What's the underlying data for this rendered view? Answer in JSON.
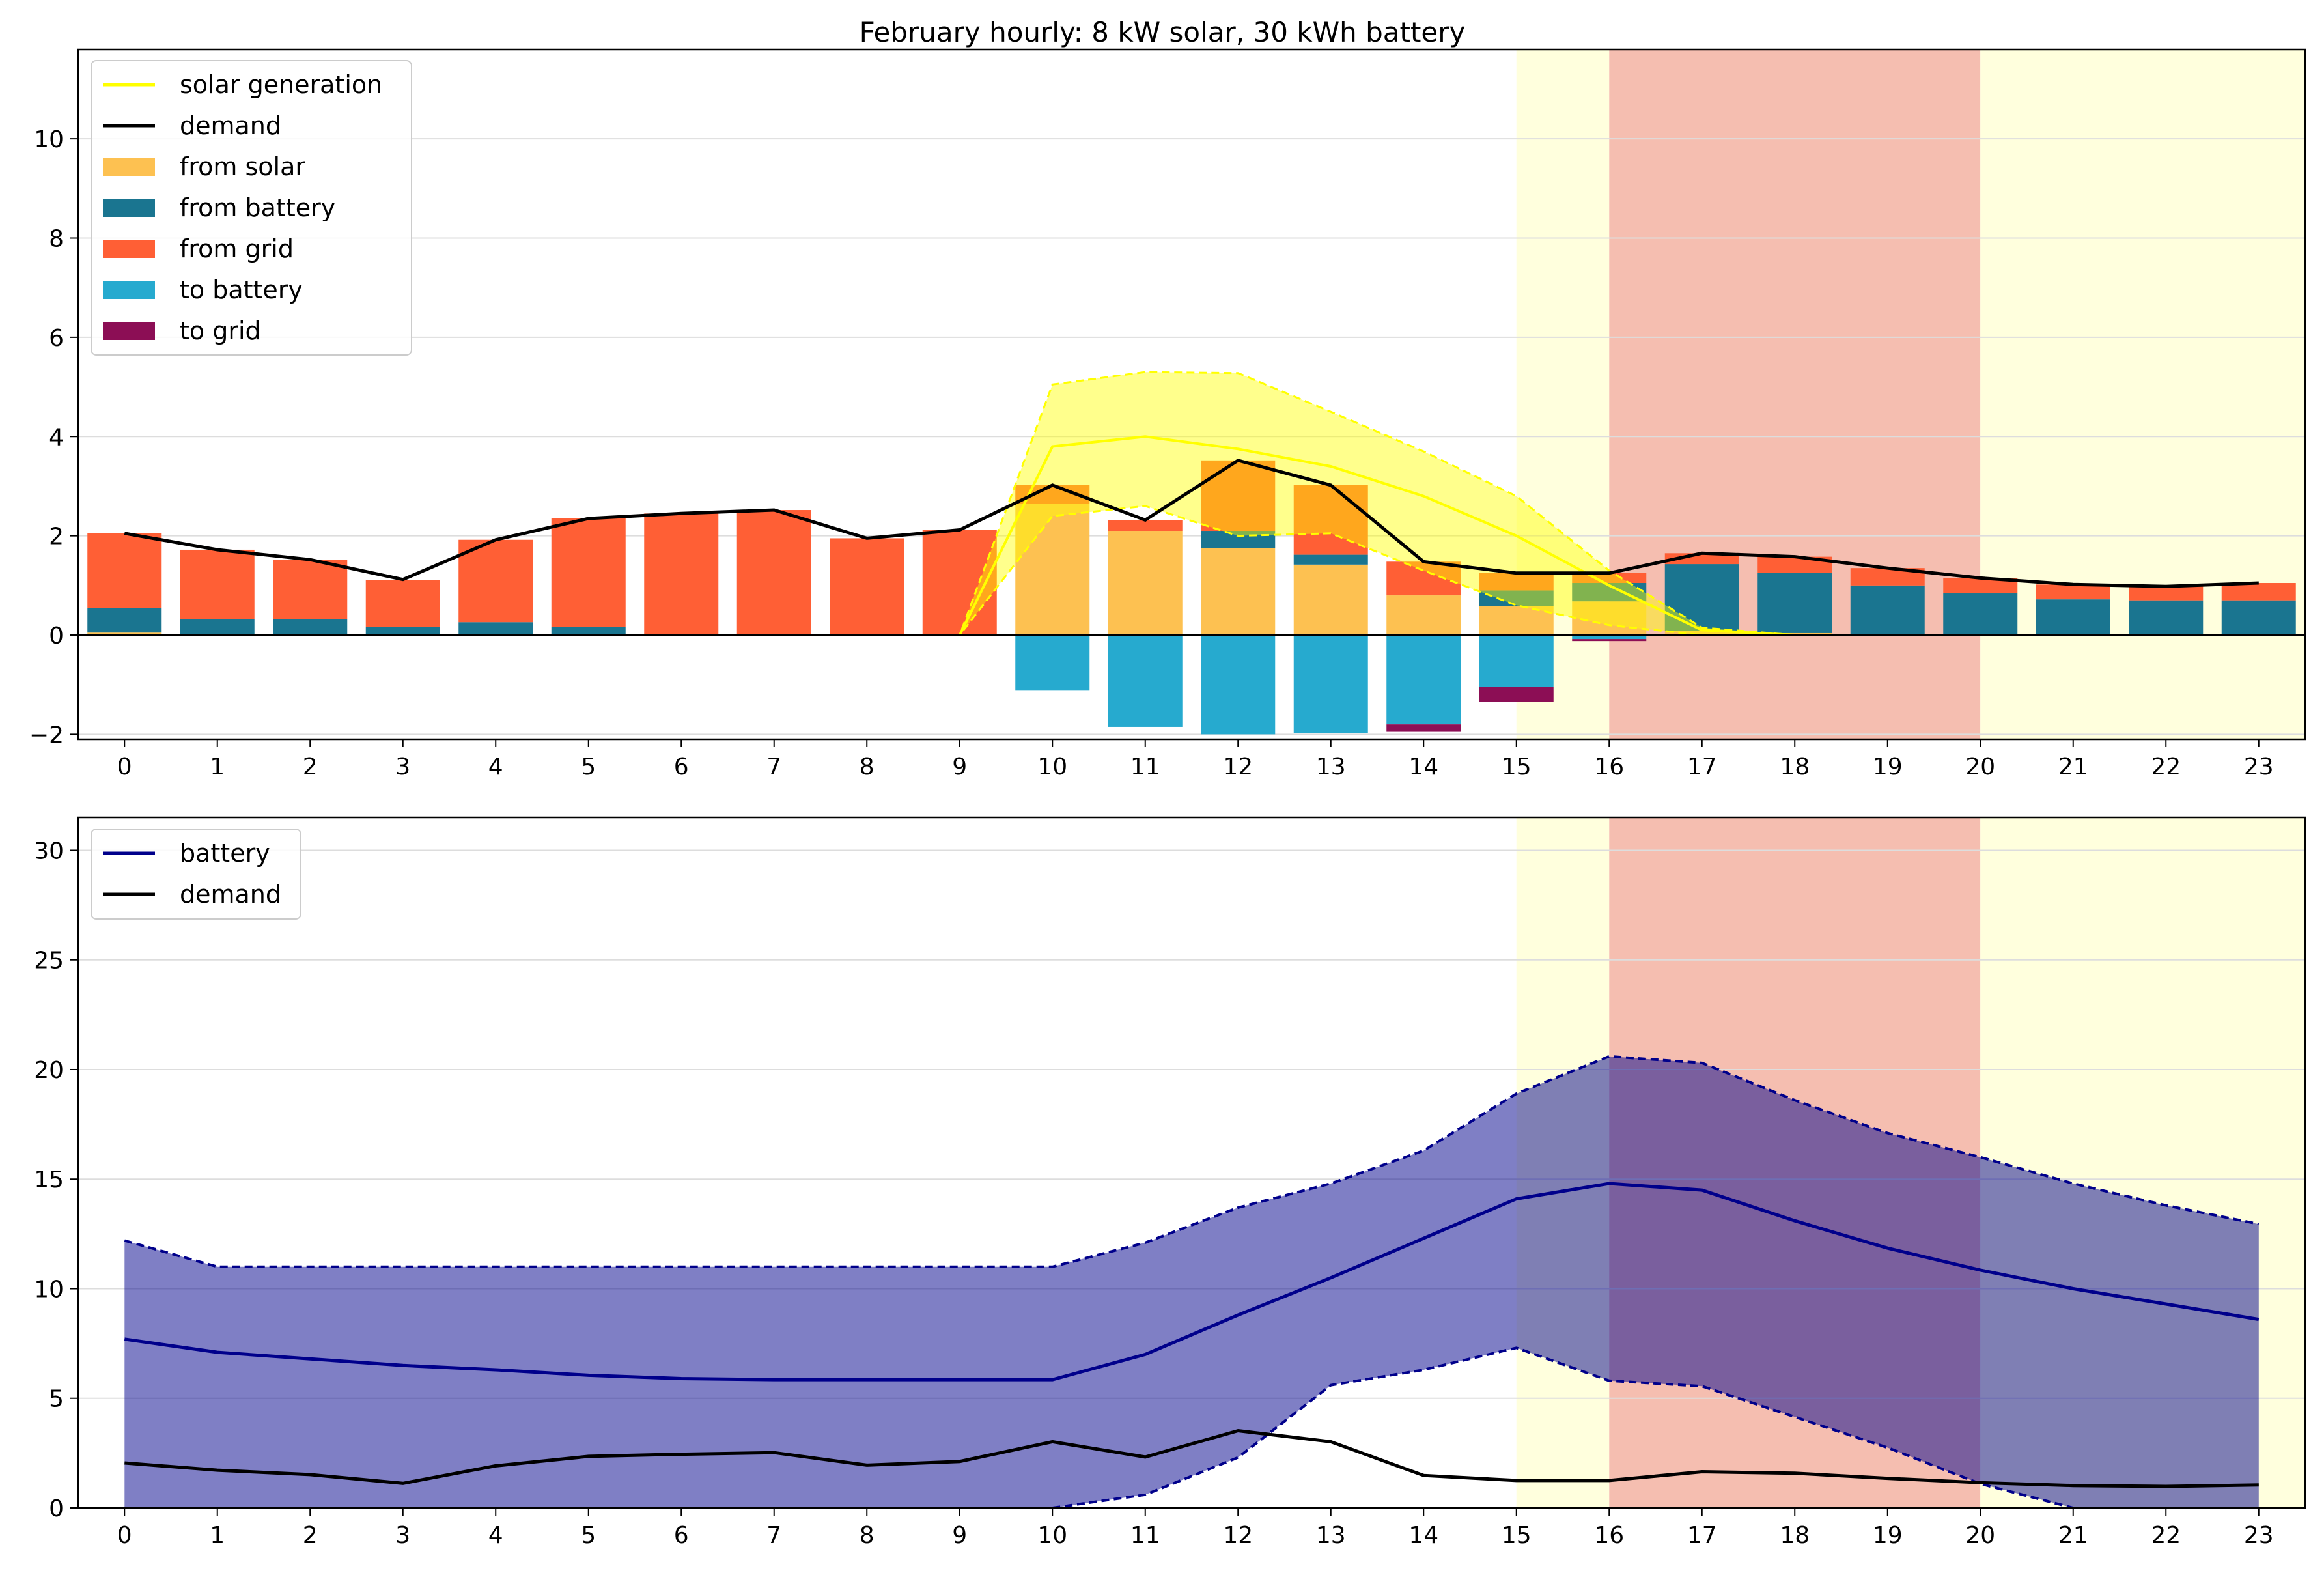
{
  "title": "February hourly: 8 kW solar, 30 kWh battery",
  "colors": {
    "solar_line": "#ffff00",
    "demand_line": "#000000",
    "from_solar": "#fdc151",
    "from_battery": "#1a7590",
    "from_grid": "#ff5f35",
    "to_battery": "#26aacf",
    "to_grid": "#8c0e55",
    "battery_line": "#00008b",
    "battery_band": "#7f7fc5",
    "shade_light": "#ffffdd",
    "shade_peak": "#f5beb0"
  },
  "chart_data": [
    {
      "type": "bar",
      "stacked": true,
      "x": [
        0,
        1,
        2,
        3,
        4,
        5,
        6,
        7,
        8,
        9,
        10,
        11,
        12,
        13,
        14,
        15,
        16,
        17,
        18,
        19,
        20,
        21,
        22,
        23
      ],
      "ylim": [
        -2.1,
        11.8
      ],
      "yticks": [
        -2,
        0,
        2,
        4,
        6,
        8,
        10
      ],
      "xlim": [
        -0.5,
        23.5
      ],
      "grid": "y",
      "legend_position": "top-left",
      "shaded_regions": [
        {
          "from": 15,
          "to": 16,
          "kind": "shoulder"
        },
        {
          "from": 16,
          "to": 20,
          "kind": "peak"
        },
        {
          "from": 20,
          "to": 23.5,
          "kind": "shoulder"
        }
      ],
      "series": [
        {
          "name": "solar generation",
          "kind": "line",
          "values": [
            0,
            0,
            0,
            0,
            0,
            0,
            0,
            0,
            0,
            0,
            3.8,
            4.0,
            3.75,
            3.4,
            2.8,
            2.0,
            1.0,
            0.1,
            0,
            0,
            0,
            0,
            0,
            0
          ]
        },
        {
          "name": "demand",
          "kind": "line",
          "values": [
            2.05,
            1.72,
            1.52,
            1.12,
            1.92,
            2.35,
            2.45,
            2.52,
            1.95,
            2.12,
            3.02,
            2.32,
            3.52,
            3.02,
            1.48,
            1.25,
            1.25,
            1.65,
            1.58,
            1.35,
            1.15,
            1.02,
            0.98,
            1.05
          ]
        },
        {
          "name": "from solar",
          "kind": "bar",
          "values": [
            0.05,
            0.02,
            0.02,
            0.01,
            0.01,
            0.01,
            0.01,
            0.01,
            0.01,
            0.01,
            2.65,
            2.1,
            1.75,
            1.42,
            0.8,
            0.58,
            0.68,
            0.08,
            0.04,
            0.02,
            0.01,
            0,
            0,
            0
          ]
        },
        {
          "name": "from battery",
          "kind": "bar",
          "values": [
            0.5,
            0.3,
            0.3,
            0.15,
            0.25,
            0.15,
            0,
            0,
            0,
            0,
            0,
            0,
            0.35,
            0.2,
            0,
            0.32,
            0.37,
            1.35,
            1.22,
            0.98,
            0.83,
            0.72,
            0.7,
            0.7
          ]
        },
        {
          "name": "from grid",
          "kind": "bar",
          "values": [
            1.5,
            1.4,
            1.2,
            0.95,
            1.66,
            2.19,
            2.44,
            2.51,
            1.94,
            2.11,
            0.37,
            0.22,
            1.42,
            1.4,
            0.68,
            0.35,
            0.2,
            0.22,
            0.32,
            0.35,
            0.31,
            0.3,
            0.28,
            0.35
          ]
        },
        {
          "name": "to battery",
          "kind": "bar",
          "values": [
            0,
            0,
            0,
            0,
            0,
            0,
            0,
            0,
            0,
            0,
            -1.12,
            -1.85,
            -2.0,
            -1.98,
            -1.8,
            -1.05,
            -0.08,
            0,
            0,
            0,
            0,
            0,
            0,
            0
          ]
        },
        {
          "name": "to grid",
          "kind": "bar",
          "values": [
            0,
            0,
            0,
            0,
            0,
            0,
            0,
            0,
            0,
            0,
            0,
            0,
            0,
            0,
            -0.15,
            -0.3,
            -0.04,
            0,
            0,
            0,
            0,
            0,
            0,
            0
          ]
        }
      ],
      "solar_band": {
        "upper": [
          0,
          0,
          0,
          0,
          0,
          0,
          0,
          0,
          0,
          0,
          5.05,
          5.3,
          5.28,
          4.5,
          3.7,
          2.8,
          1.3,
          0.15,
          0,
          0,
          0,
          0,
          0,
          0
        ],
        "lower": [
          0,
          0,
          0,
          0,
          0,
          0,
          0,
          0,
          0,
          0,
          2.4,
          2.6,
          2.0,
          2.05,
          1.3,
          0.6,
          0.2,
          0,
          0,
          0,
          0,
          0,
          0,
          0
        ]
      }
    },
    {
      "type": "line",
      "x": [
        0,
        1,
        2,
        3,
        4,
        5,
        6,
        7,
        8,
        9,
        10,
        11,
        12,
        13,
        14,
        15,
        16,
        17,
        18,
        19,
        20,
        21,
        22,
        23
      ],
      "ylim": [
        0,
        31.5
      ],
      "yticks": [
        0,
        5,
        10,
        15,
        20,
        25,
        30
      ],
      "xlim": [
        -0.5,
        23.5
      ],
      "grid": "y",
      "legend_position": "top-left",
      "series": [
        {
          "name": "battery",
          "values": [
            7.7,
            7.1,
            6.8,
            6.5,
            6.3,
            6.05,
            5.9,
            5.85,
            5.85,
            5.85,
            5.85,
            7.0,
            8.8,
            10.5,
            12.3,
            14.1,
            14.8,
            14.5,
            13.1,
            11.85,
            10.85,
            10.0,
            9.3,
            8.6
          ]
        },
        {
          "name": "demand",
          "values": [
            2.05,
            1.72,
            1.52,
            1.12,
            1.92,
            2.35,
            2.45,
            2.52,
            1.95,
            2.12,
            3.02,
            2.32,
            3.52,
            3.02,
            1.48,
            1.25,
            1.25,
            1.65,
            1.58,
            1.35,
            1.15,
            1.02,
            0.98,
            1.05
          ]
        }
      ],
      "battery_band": {
        "upper": [
          12.2,
          11.0,
          11.0,
          11.0,
          11.0,
          11.0,
          11.0,
          11.0,
          11.0,
          11.0,
          11.0,
          12.1,
          13.7,
          14.8,
          16.3,
          18.9,
          20.6,
          20.3,
          18.6,
          17.1,
          16.0,
          14.8,
          13.8,
          12.95
        ],
        "lower": [
          0,
          0,
          0,
          0,
          0,
          0,
          0,
          0,
          0,
          0,
          0,
          0.6,
          2.3,
          5.6,
          6.3,
          7.3,
          5.8,
          5.55,
          4.15,
          2.75,
          1.1,
          0,
          0,
          0
        ]
      }
    }
  ]
}
